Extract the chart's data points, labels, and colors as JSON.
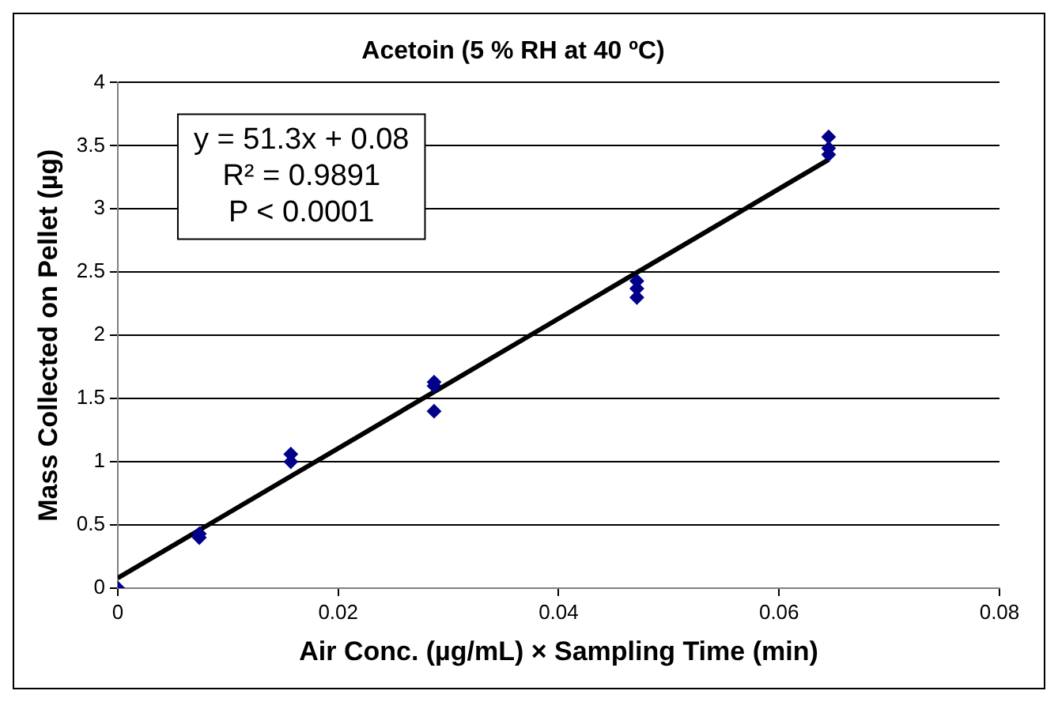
{
  "chart_data": {
    "type": "scatter",
    "title": "Acetoin (5 % RH at 40 ºC)",
    "xlabel": "Air Conc. (µg/mL) × Sampling Time (min)",
    "ylabel": "Mass Collected on Pellet (µg)",
    "xlim": [
      0,
      0.08
    ],
    "xticks": [
      0,
      0.02,
      0.04,
      0.06,
      0.08
    ],
    "ylim": [
      0,
      4
    ],
    "yticks": [
      0,
      0.5,
      1,
      1.5,
      2,
      2.5,
      3,
      3.5,
      4
    ],
    "grid": "y",
    "legend": false,
    "series": [
      {
        "marker": "diamond",
        "color": "#00008b",
        "x": [
          0,
          0.0074,
          0.0074,
          0.0157,
          0.0157,
          0.0287,
          0.0287,
          0.0287,
          0.0471,
          0.0471,
          0.0471,
          0.0645,
          0.0645,
          0.0645
        ],
        "values": [
          0,
          0.4,
          0.43,
          1.0,
          1.06,
          1.4,
          1.6,
          1.63,
          2.3,
          2.37,
          2.43,
          3.43,
          3.48,
          3.57
        ]
      },
      {
        "type": "line",
        "marker": "none",
        "color": "#000000",
        "x": [
          0,
          0.0645
        ],
        "values": [
          0.08,
          3.39
        ]
      }
    ],
    "annotations": [
      "y = 51.3x + 0.08",
      "R² = 0.9891",
      "P < 0.0001"
    ]
  }
}
